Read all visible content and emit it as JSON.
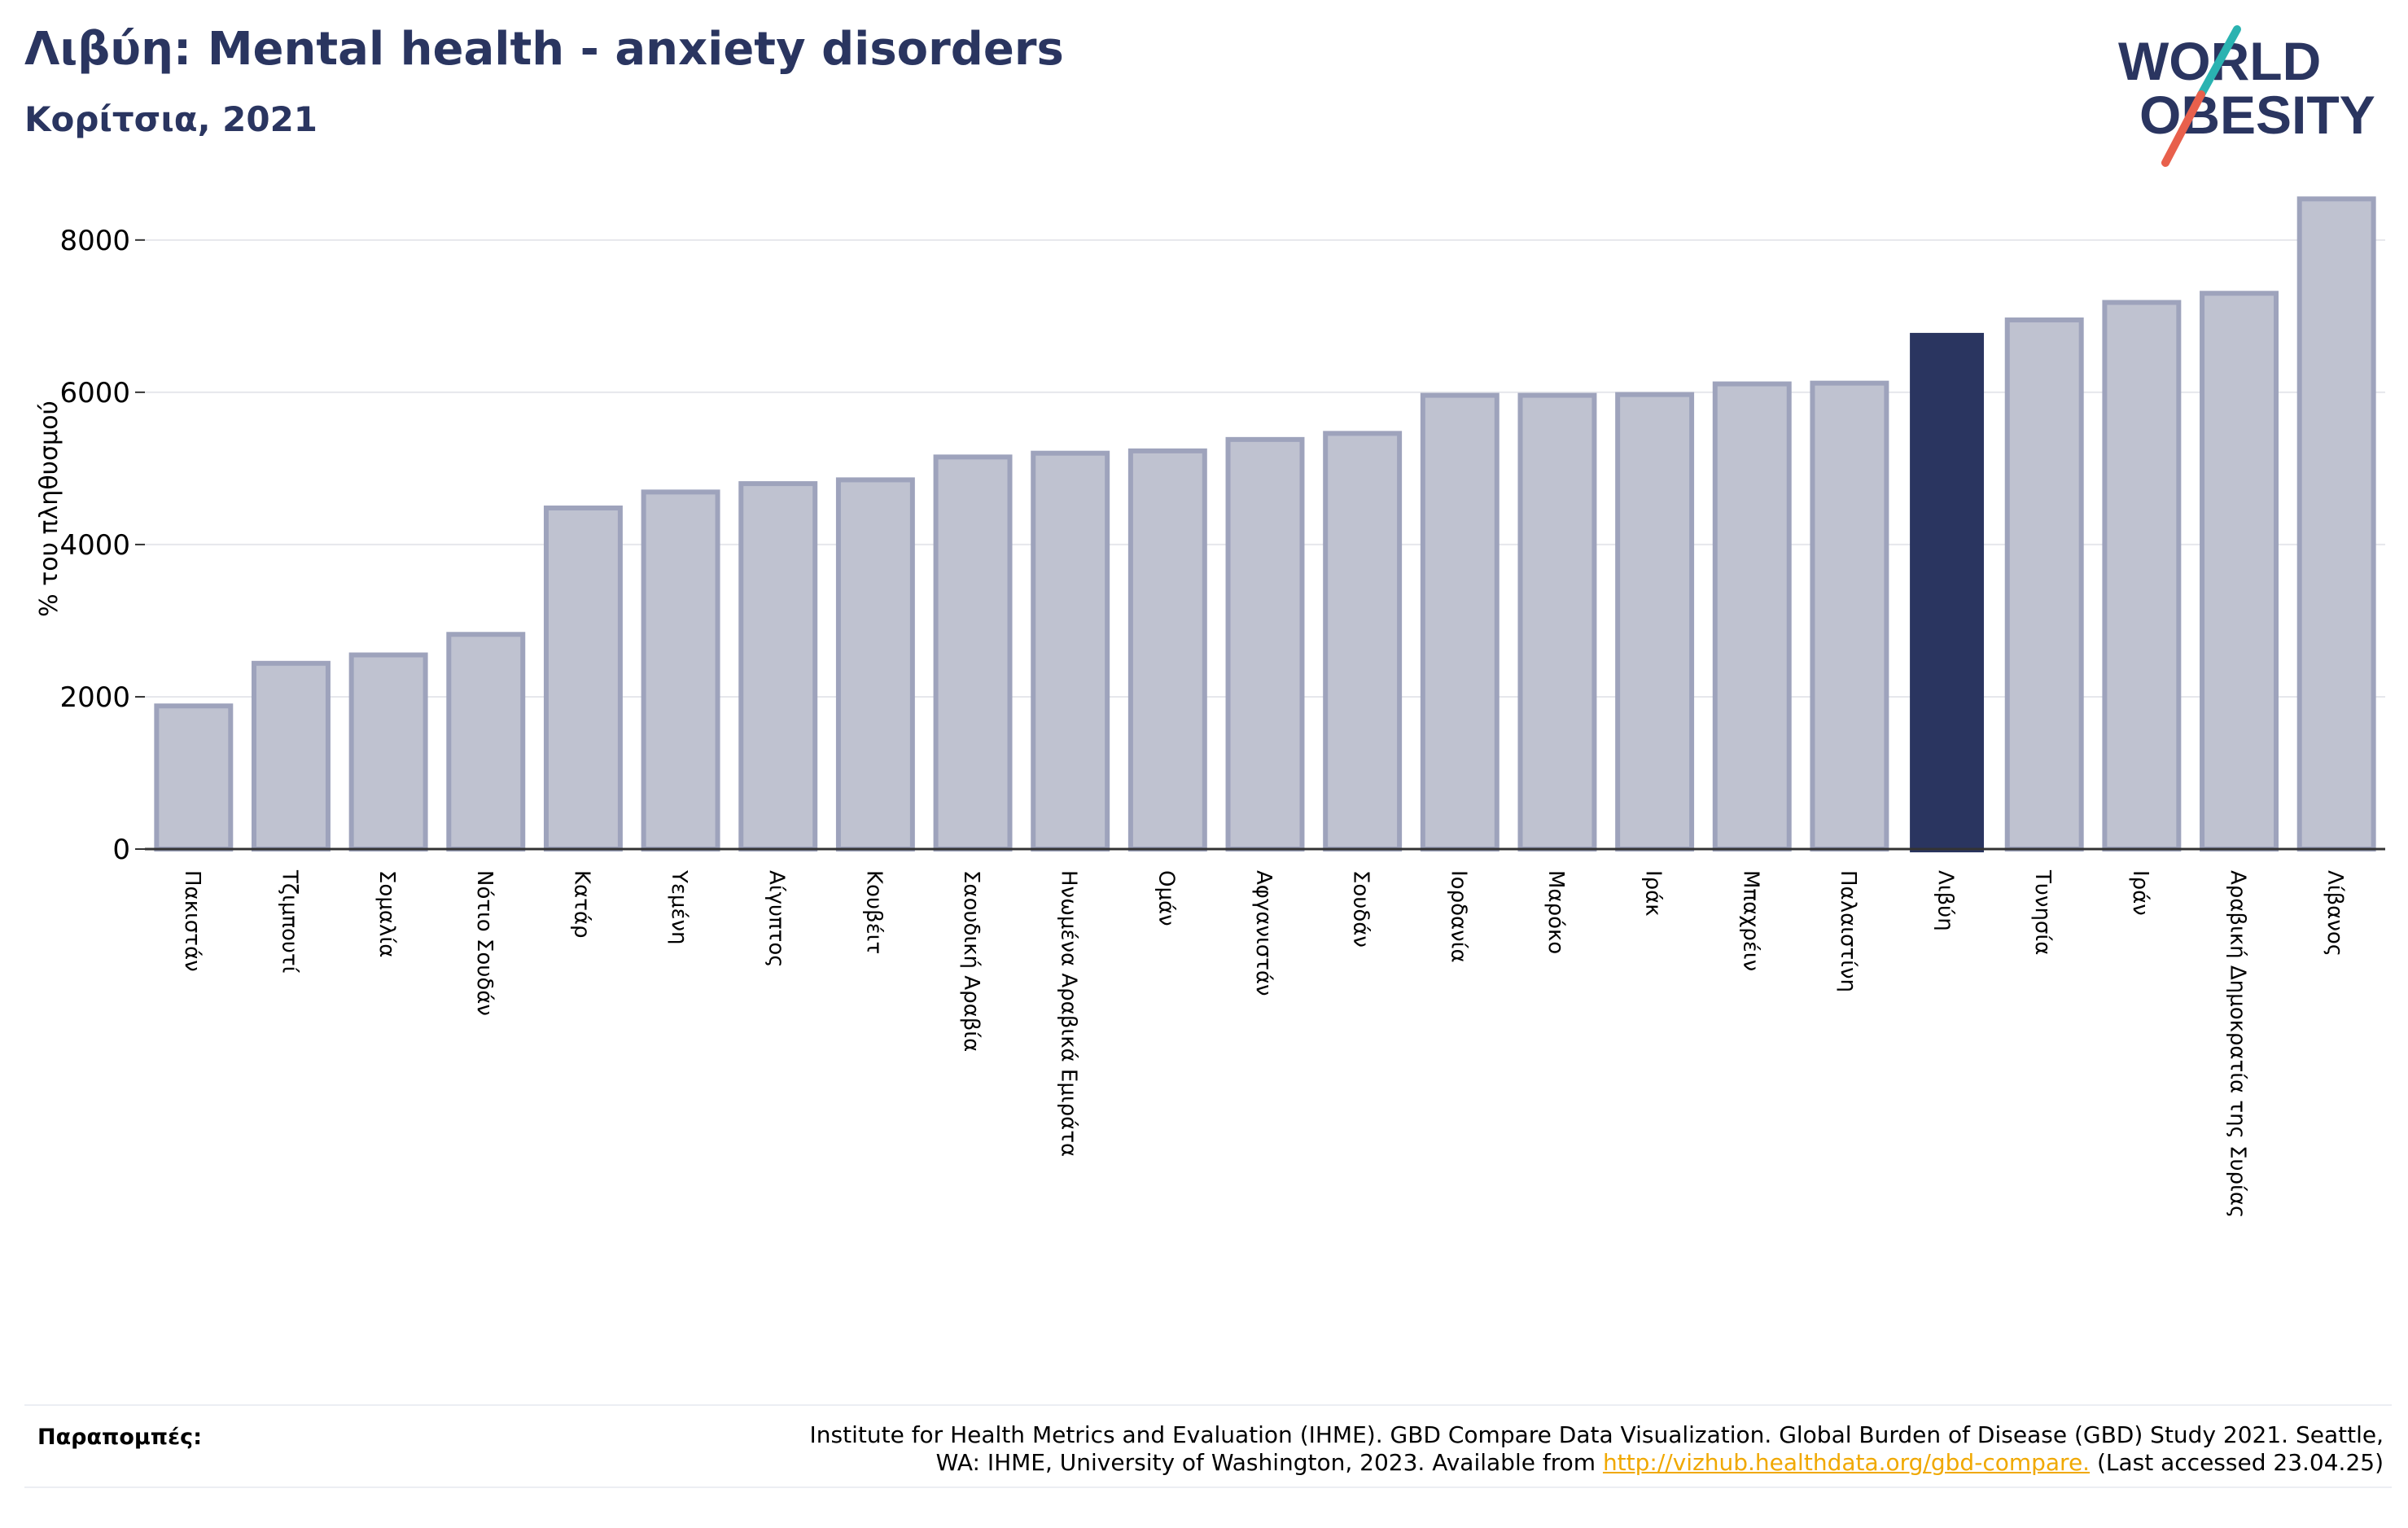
{
  "header": {
    "title": "Λιβύη: Mental health - anxiety disorders",
    "subtitle": "Κορίτσια, 2021"
  },
  "logo": {
    "line1": "WORLD",
    "line2": "OBESITY",
    "colors": {
      "text": "#2a3560",
      "slash_top": "#2ab3b1",
      "slash_bottom": "#e8604c"
    }
  },
  "colors": {
    "bar_fill": "#bfc2d0",
    "bar_stroke": "#9ea3bc",
    "highlight": "#2a3560",
    "grid": "#e6e7ec",
    "axis": "#333333"
  },
  "chart_data": {
    "type": "bar",
    "ylabel": "% του πληθυσμού",
    "ylim": [
      0,
      8800
    ],
    "yticks": [
      0,
      2000,
      4000,
      6000,
      8000
    ],
    "highlight_category": "Λιβύη",
    "categories": [
      "Πακιστάν",
      "Τζιμπουτί",
      "Σομαλία",
      "Νότιο Σουδάν",
      "Κατάρ",
      "Υεμένη",
      "Αίγυπτος",
      "Κουβέιτ",
      "Σαουδική Αραβία",
      "Ηνωμένα Αραβικά Εμιράτα",
      "Ομάν",
      "Αφγανιστάν",
      "Σουδάν",
      "Ιορδανία",
      "Μαρόκο",
      "Ιράκ",
      "Μπαχρέιν",
      "Παλαιστίνη",
      "Λιβύη",
      "Τυνησία",
      "Ιράν",
      "Αραβική Δημοκρατία της Συρίας",
      "Λίβανος"
    ],
    "values": [
      1880,
      2440,
      2550,
      2820,
      4480,
      4690,
      4800,
      4850,
      5150,
      5200,
      5230,
      5380,
      5460,
      5960,
      5960,
      5970,
      6110,
      6120,
      6780,
      6950,
      7180,
      7300,
      8540
    ]
  },
  "footer": {
    "references_label": "Παραπομπές:",
    "reference_text_1": "Institute for Health Metrics and Evaluation (IHME). GBD Compare Data Visualization. Global Burden of Disease (GBD) Study 2021. Seattle,",
    "reference_text_2": "WA: IHME, University of Washington, 2023. Available from",
    "reference_link": "http://vizhub.healthdata.org/gbd-compare.",
    "reference_text_3": "(Last accessed 23.04.25)"
  }
}
